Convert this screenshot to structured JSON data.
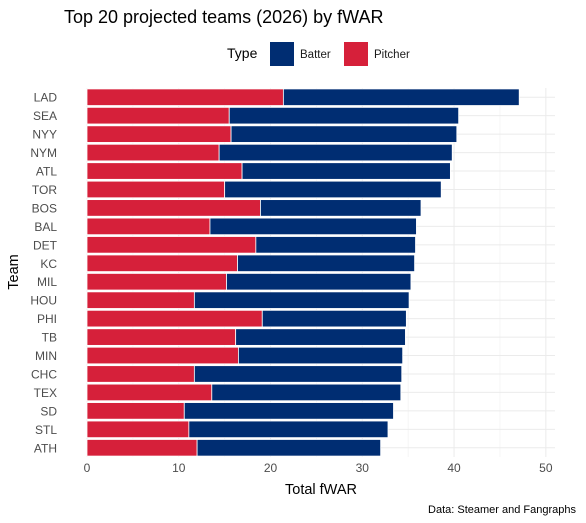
{
  "chart_data": {
    "type": "bar",
    "orientation": "horizontal",
    "stacked": true,
    "title": "Top 20 projected teams (2026) by fWAR",
    "xlabel": "Total fWAR",
    "ylabel": "Team",
    "caption": "Data: Steamer and Fangraphs",
    "legend": {
      "title": "Type",
      "position": "top",
      "entries": [
        {
          "label": "Batter",
          "color": "#002d72"
        },
        {
          "label": "Pitcher",
          "color": "#d6203a"
        }
      ]
    },
    "xlim": [
      0,
      51
    ],
    "xticks": [
      0,
      10,
      20,
      30,
      40,
      50
    ],
    "grid": true,
    "categories": [
      "LAD",
      "SEA",
      "NYY",
      "NYM",
      "ATL",
      "TOR",
      "BOS",
      "BAL",
      "DET",
      "KC",
      "MIL",
      "HOU",
      "PHI",
      "TB",
      "MIN",
      "CHC",
      "TEX",
      "SD",
      "STL",
      "ATH"
    ],
    "series": [
      {
        "name": "Pitcher",
        "color": "#d6203a",
        "values": [
          21.4,
          15.5,
          15.7,
          14.4,
          16.9,
          15.0,
          18.9,
          13.4,
          18.4,
          16.4,
          15.2,
          11.7,
          19.1,
          16.2,
          16.5,
          11.7,
          13.6,
          10.6,
          11.1,
          12.0
        ]
      },
      {
        "name": "Batter",
        "color": "#002d72",
        "values": [
          25.7,
          25.0,
          24.6,
          25.4,
          22.7,
          23.6,
          17.5,
          22.5,
          17.4,
          19.3,
          20.1,
          23.4,
          15.7,
          18.5,
          17.9,
          22.6,
          20.6,
          22.8,
          21.7,
          20.0
        ]
      }
    ]
  }
}
